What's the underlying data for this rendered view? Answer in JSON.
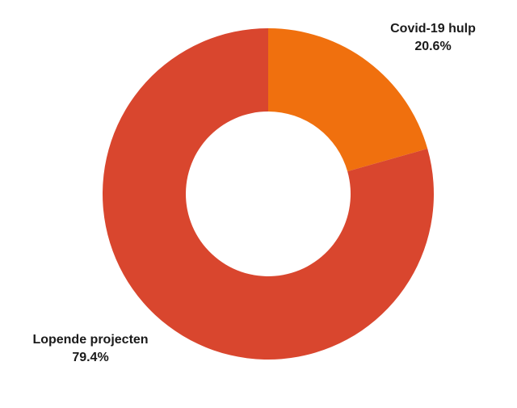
{
  "chart_data": {
    "type": "pie",
    "donut": true,
    "slices": [
      {
        "label": "Covid-19 hulp",
        "value": 20.6,
        "value_label": "20.6%",
        "color": "#f0700e"
      },
      {
        "label": "Lopende projecten",
        "value": 79.4,
        "value_label": "79.4%",
        "color": "#d9462e"
      }
    ],
    "legend": "none",
    "start_angle": "top",
    "direction": "clockwise"
  }
}
